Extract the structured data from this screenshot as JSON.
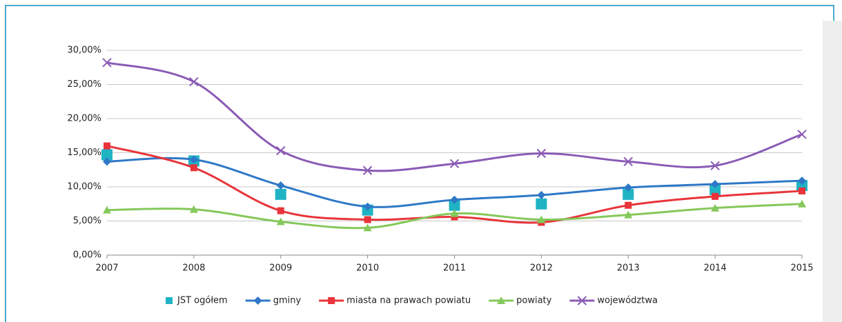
{
  "chart_data": {
    "type": "line",
    "categories": [
      "2007",
      "2008",
      "2009",
      "2010",
      "2011",
      "2012",
      "2013",
      "2014",
      "2015"
    ],
    "series": [
      {
        "name": "JST ogółem",
        "color": "#1fb3c4",
        "marker": "square",
        "line": false,
        "values": [
          14.7,
          13.8,
          8.9,
          6.6,
          7.3,
          7.5,
          8.9,
          9.6,
          10.2
        ]
      },
      {
        "name": "gminy",
        "color": "#2e78c7",
        "marker": "diamond",
        "line": true,
        "values": [
          13.7,
          14.0,
          10.2,
          7.1,
          8.1,
          8.8,
          9.9,
          10.4,
          10.9
        ]
      },
      {
        "name": "miasta na prawach powiatu",
        "color": "#e8343a",
        "marker": "square",
        "line": true,
        "values": [
          16.0,
          12.8,
          6.5,
          5.2,
          5.6,
          4.8,
          7.3,
          8.6,
          9.4
        ]
      },
      {
        "name": "powiaty",
        "color": "#84c85a",
        "marker": "triangle",
        "line": true,
        "values": [
          6.6,
          6.7,
          4.9,
          4.0,
          6.1,
          5.2,
          5.9,
          6.9,
          7.5
        ]
      },
      {
        "name": "województwa",
        "color": "#8a5bb5",
        "marker": "x",
        "line": true,
        "values": [
          28.2,
          25.4,
          15.3,
          12.4,
          13.4,
          14.9,
          13.7,
          13.1,
          17.7
        ]
      }
    ],
    "ylim": [
      0,
      30
    ],
    "yticks": [
      {
        "value": 0,
        "label": "0,00%"
      },
      {
        "value": 5,
        "label": "5,00%"
      },
      {
        "value": 10,
        "label": "10,00%"
      },
      {
        "value": 15,
        "label": "15,00%"
      },
      {
        "value": 20,
        "label": "20,00%"
      },
      {
        "value": 25,
        "label": "25,00%"
      },
      {
        "value": 30,
        "label": "30,00%"
      }
    ],
    "grid": true,
    "legend": "bottom"
  }
}
